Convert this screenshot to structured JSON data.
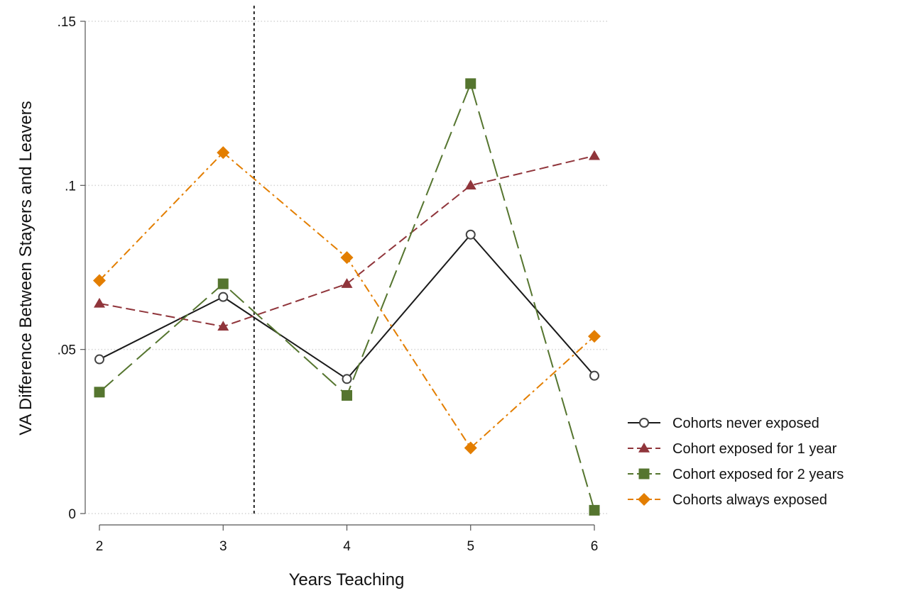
{
  "chart_data": {
    "type": "line",
    "xlabel": "Years Teaching",
    "ylabel": "VA Difference Between Stayers and Leavers",
    "x": [
      2,
      3,
      4,
      5,
      6
    ],
    "x_ticks": [
      2,
      3,
      4,
      5,
      6
    ],
    "x_tick_labels": [
      "2",
      "3",
      "4",
      "5",
      "6"
    ],
    "y_ticks": [
      0,
      0.05,
      0.1,
      0.15
    ],
    "y_tick_labels": [
      "0",
      ".05",
      ".1",
      ".15"
    ],
    "xlim": [
      2,
      6
    ],
    "ylim": [
      0,
      0.15
    ],
    "grid": "horizontal dotted",
    "reference_line_x": 3.25,
    "legend_position": "right",
    "series": [
      {
        "name": "Cohorts never exposed",
        "values": [
          0.047,
          0.066,
          0.041,
          0.085,
          0.042
        ],
        "color": "#1a1a1a",
        "marker": "hollow-circle",
        "dash": "solid"
      },
      {
        "name": "Cohort exposed for 1 year",
        "values": [
          0.064,
          0.057,
          0.07,
          0.1,
          0.109
        ],
        "color": "#90353b",
        "marker": "triangle",
        "dash": "short-dash"
      },
      {
        "name": "Cohort exposed for 2 years",
        "values": [
          0.037,
          0.07,
          0.036,
          0.131,
          0.001
        ],
        "color": "#55752f",
        "marker": "square",
        "dash": "long-dash"
      },
      {
        "name": "Cohorts always exposed",
        "values": [
          0.071,
          0.11,
          0.078,
          0.02,
          0.054
        ],
        "color": "#e37e00",
        "marker": "diamond",
        "dash": "dash-dot"
      }
    ]
  }
}
